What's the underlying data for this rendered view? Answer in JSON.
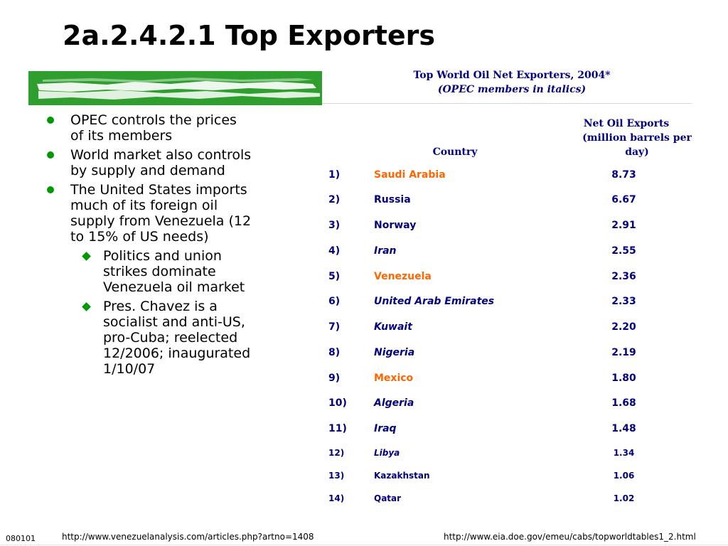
{
  "slide": {
    "title": "2a.2.4.2.1 Top Exporters",
    "number": "080101"
  },
  "colors": {
    "bullet_green": "#009900",
    "table_text": "#000080",
    "highlight": "#ff6600",
    "banner_green": "#2e9e2e"
  },
  "bullets": [
    {
      "text": "OPEC controls the prices of its members",
      "icon": "green-dot-icon"
    },
    {
      "text": "World market also controls by supply and demand",
      "icon": "green-dot-icon"
    },
    {
      "text": "The United States imports much of its foreign oil supply from Venezuela (12 to 15% of US needs)",
      "icon": "green-dot-icon"
    }
  ],
  "sub_bullets": [
    {
      "text": "Politics and union strikes dominate Venezuela oil market",
      "icon": "green-diamond-icon"
    },
    {
      "text": "Pres. Chavez is a socialist and anti-US, pro-Cuba; reelected 12/2006; inaugurated 1/10/07",
      "icon": "green-diamond-icon"
    }
  ],
  "table": {
    "title": "Top World Oil Net Exporters, 2004*",
    "subtitle": "(OPEC members in italics)",
    "headers": {
      "country": "Country",
      "exports_line1": "Net Oil Exports",
      "exports_line2": "(million barrels per",
      "exports_line3": "day)"
    },
    "rows": [
      {
        "rank": "1)",
        "country": "Saudi Arabia",
        "value": "8.73",
        "opec": false,
        "highlight": true
      },
      {
        "rank": "2)",
        "country": "Russia",
        "value": "6.67",
        "opec": false,
        "highlight": false
      },
      {
        "rank": "3)",
        "country": "Norway",
        "value": "2.91",
        "opec": false,
        "highlight": false
      },
      {
        "rank": "4)",
        "country": "Iran",
        "value": "2.55",
        "opec": true,
        "highlight": false
      },
      {
        "rank": "5)",
        "country": "Venezuela",
        "value": "2.36",
        "opec": false,
        "highlight": true
      },
      {
        "rank": "6)",
        "country": "United Arab Emirates",
        "value": "2.33",
        "opec": true,
        "highlight": false
      },
      {
        "rank": "7)",
        "country": "Kuwait",
        "value": "2.20",
        "opec": true,
        "highlight": false
      },
      {
        "rank": "8)",
        "country": "Nigeria",
        "value": "2.19",
        "opec": true,
        "highlight": false
      },
      {
        "rank": "9)",
        "country": "Mexico",
        "value": "1.80",
        "opec": false,
        "highlight": true
      },
      {
        "rank": "10)",
        "country": "Algeria",
        "value": "1.68",
        "opec": true,
        "highlight": false
      },
      {
        "rank": "11)",
        "country": "Iraq",
        "value": "1.48",
        "opec": true,
        "highlight": false
      },
      {
        "rank": "12)",
        "country": "Libya",
        "value": "1.34",
        "opec": true,
        "highlight": false
      },
      {
        "rank": "13)",
        "country": "Kazakhstan",
        "value": "1.06",
        "opec": false,
        "highlight": false
      },
      {
        "rank": "14)",
        "country": "Qatar",
        "value": "1.02",
        "opec": false,
        "highlight": false
      }
    ]
  },
  "footer": {
    "url_left": "http://www.venezuelanalysis.com/articles.php?artno=1408",
    "url_right": "http://www.eia.doe.gov/emeu/cabs/topworldtables1_2.html"
  }
}
